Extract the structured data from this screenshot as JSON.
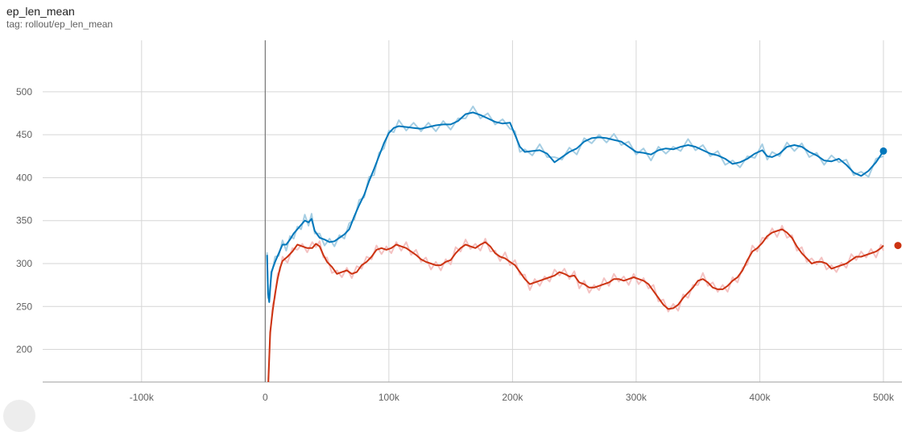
{
  "header": {
    "title": "ep_len_mean",
    "tag": "tag: rollout/ep_len_mean"
  },
  "chart_data": {
    "type": "line",
    "title": "ep_len_mean",
    "xlabel": "",
    "ylabel": "",
    "xlim": [
      -180000,
      515000
    ],
    "ylim": [
      162,
      560
    ],
    "x_ticks": [
      -100000,
      0,
      100000,
      200000,
      300000,
      400000,
      500000
    ],
    "x_tick_labels": [
      "-100k",
      "0",
      "100k",
      "200k",
      "300k",
      "400k",
      "500k"
    ],
    "y_ticks": [
      200,
      250,
      300,
      350,
      400,
      450,
      500
    ],
    "y_tick_labels": [
      "200",
      "250",
      "300",
      "350",
      "400",
      "450",
      "500"
    ],
    "grid": true,
    "series": [
      {
        "color": "#0077bb",
        "raw_color": "#a6cee3",
        "points": [
          [
            1500,
            310
          ],
          [
            2300,
            265
          ],
          [
            3200,
            255
          ],
          [
            5000,
            290
          ],
          [
            8000,
            302
          ],
          [
            11000,
            312
          ],
          [
            14000,
            322
          ],
          [
            17000,
            322
          ],
          [
            20000,
            328
          ],
          [
            23000,
            335
          ],
          [
            26000,
            340
          ],
          [
            29000,
            345
          ],
          [
            32000,
            350
          ],
          [
            35000,
            348
          ],
          [
            37500,
            352
          ],
          [
            40000,
            338
          ],
          [
            44000,
            330
          ],
          [
            48000,
            328
          ],
          [
            52000,
            325
          ],
          [
            56000,
            326
          ],
          [
            60000,
            330
          ],
          [
            64000,
            334
          ],
          [
            68000,
            340
          ],
          [
            72000,
            355
          ],
          [
            76000,
            368
          ],
          [
            80000,
            380
          ],
          [
            84000,
            396
          ],
          [
            88000,
            410
          ],
          [
            92000,
            425
          ],
          [
            96000,
            440
          ],
          [
            100000,
            452
          ],
          [
            104000,
            458
          ],
          [
            108000,
            460
          ],
          [
            114000,
            459
          ],
          [
            120000,
            458
          ],
          [
            126000,
            457
          ],
          [
            132000,
            459
          ],
          [
            138000,
            461
          ],
          [
            144000,
            462
          ],
          [
            150000,
            462
          ],
          [
            156000,
            466
          ],
          [
            162000,
            474
          ],
          [
            168000,
            476
          ],
          [
            174000,
            473
          ],
          [
            180000,
            469
          ],
          [
            186000,
            465
          ],
          [
            192000,
            463
          ],
          [
            198000,
            464
          ],
          [
            202000,
            450
          ],
          [
            206000,
            436
          ],
          [
            210000,
            430
          ],
          [
            216000,
            431
          ],
          [
            222000,
            432
          ],
          [
            228000,
            428
          ],
          [
            234000,
            418
          ],
          [
            240000,
            424
          ],
          [
            246000,
            430
          ],
          [
            252000,
            434
          ],
          [
            258000,
            442
          ],
          [
            264000,
            446
          ],
          [
            270000,
            447
          ],
          [
            276000,
            446
          ],
          [
            282000,
            444
          ],
          [
            288000,
            442
          ],
          [
            294000,
            436
          ],
          [
            300000,
            430
          ],
          [
            306000,
            429
          ],
          [
            312000,
            427
          ],
          [
            318000,
            432
          ],
          [
            324000,
            434
          ],
          [
            330000,
            433
          ],
          [
            336000,
            436
          ],
          [
            342000,
            438
          ],
          [
            348000,
            436
          ],
          [
            354000,
            432
          ],
          [
            360000,
            428
          ],
          [
            366000,
            426
          ],
          [
            372000,
            422
          ],
          [
            378000,
            416
          ],
          [
            384000,
            418
          ],
          [
            390000,
            422
          ],
          [
            396000,
            428
          ],
          [
            402000,
            432
          ],
          [
            406000,
            425
          ],
          [
            410000,
            424
          ],
          [
            416000,
            428
          ],
          [
            422000,
            436
          ],
          [
            428000,
            438
          ],
          [
            434000,
            436
          ],
          [
            440000,
            430
          ],
          [
            446000,
            426
          ],
          [
            452000,
            420
          ],
          [
            458000,
            419
          ],
          [
            464000,
            422
          ],
          [
            470000,
            415
          ],
          [
            476000,
            406
          ],
          [
            482000,
            402
          ],
          [
            488000,
            408
          ],
          [
            494000,
            418
          ],
          [
            500000,
            431
          ]
        ],
        "end_marker": [
          500000,
          431
        ]
      },
      {
        "color": "#cc3311",
        "raw_color": "#f4c2c2",
        "points": [
          [
            2500,
            162
          ],
          [
            4000,
            220
          ],
          [
            6000,
            245
          ],
          [
            8000,
            265
          ],
          [
            10000,
            282
          ],
          [
            12000,
            295
          ],
          [
            14000,
            303
          ],
          [
            18000,
            308
          ],
          [
            22000,
            314
          ],
          [
            26000,
            322
          ],
          [
            30000,
            320
          ],
          [
            34000,
            318
          ],
          [
            38000,
            318
          ],
          [
            41000,
            323
          ],
          [
            44000,
            320
          ],
          [
            47000,
            310
          ],
          [
            50000,
            302
          ],
          [
            54000,
            296
          ],
          [
            58000,
            288
          ],
          [
            62000,
            290
          ],
          [
            66000,
            292
          ],
          [
            70000,
            288
          ],
          [
            74000,
            290
          ],
          [
            78000,
            298
          ],
          [
            82000,
            302
          ],
          [
            86000,
            308
          ],
          [
            90000,
            316
          ],
          [
            94000,
            318
          ],
          [
            98000,
            316
          ],
          [
            102000,
            318
          ],
          [
            106000,
            322
          ],
          [
            110000,
            320
          ],
          [
            114000,
            318
          ],
          [
            118000,
            314
          ],
          [
            122000,
            310
          ],
          [
            126000,
            305
          ],
          [
            130000,
            302
          ],
          [
            134000,
            300
          ],
          [
            138000,
            298
          ],
          [
            142000,
            298
          ],
          [
            146000,
            302
          ],
          [
            150000,
            304
          ],
          [
            154000,
            312
          ],
          [
            158000,
            318
          ],
          [
            162000,
            322
          ],
          [
            166000,
            320
          ],
          [
            170000,
            318
          ],
          [
            174000,
            322
          ],
          [
            178000,
            325
          ],
          [
            182000,
            320
          ],
          [
            186000,
            312
          ],
          [
            190000,
            308
          ],
          [
            194000,
            306
          ],
          [
            198000,
            302
          ],
          [
            202000,
            298
          ],
          [
            206000,
            290
          ],
          [
            210000,
            282
          ],
          [
            214000,
            276
          ],
          [
            218000,
            278
          ],
          [
            222000,
            280
          ],
          [
            226000,
            282
          ],
          [
            230000,
            284
          ],
          [
            234000,
            286
          ],
          [
            238000,
            290
          ],
          [
            242000,
            288
          ],
          [
            246000,
            285
          ],
          [
            250000,
            286
          ],
          [
            254000,
            278
          ],
          [
            258000,
            276
          ],
          [
            262000,
            272
          ],
          [
            266000,
            272
          ],
          [
            270000,
            274
          ],
          [
            274000,
            276
          ],
          [
            278000,
            278
          ],
          [
            282000,
            282
          ],
          [
            286000,
            282
          ],
          [
            290000,
            280
          ],
          [
            294000,
            282
          ],
          [
            298000,
            284
          ],
          [
            302000,
            282
          ],
          [
            306000,
            280
          ],
          [
            310000,
            276
          ],
          [
            314000,
            268
          ],
          [
            318000,
            260
          ],
          [
            322000,
            252
          ],
          [
            326000,
            247
          ],
          [
            330000,
            248
          ],
          [
            334000,
            252
          ],
          [
            338000,
            260
          ],
          [
            342000,
            266
          ],
          [
            346000,
            272
          ],
          [
            350000,
            280
          ],
          [
            354000,
            282
          ],
          [
            358000,
            278
          ],
          [
            362000,
            272
          ],
          [
            366000,
            270
          ],
          [
            370000,
            270
          ],
          [
            374000,
            274
          ],
          [
            378000,
            280
          ],
          [
            382000,
            284
          ],
          [
            386000,
            292
          ],
          [
            390000,
            304
          ],
          [
            394000,
            314
          ],
          [
            398000,
            318
          ],
          [
            402000,
            324
          ],
          [
            406000,
            332
          ],
          [
            410000,
            336
          ],
          [
            414000,
            338
          ],
          [
            418000,
            340
          ],
          [
            422000,
            336
          ],
          [
            426000,
            330
          ],
          [
            430000,
            320
          ],
          [
            434000,
            312
          ],
          [
            438000,
            306
          ],
          [
            442000,
            300
          ],
          [
            446000,
            302
          ],
          [
            450000,
            302
          ],
          [
            454000,
            300
          ],
          [
            458000,
            294
          ],
          [
            462000,
            296
          ],
          [
            466000,
            298
          ],
          [
            470000,
            300
          ],
          [
            474000,
            304
          ],
          [
            478000,
            308
          ],
          [
            482000,
            308
          ],
          [
            486000,
            310
          ],
          [
            490000,
            312
          ],
          [
            494000,
            314
          ],
          [
            498000,
            318
          ],
          [
            500000,
            321
          ]
        ],
        "end_marker": [
          500000,
          321
        ]
      }
    ]
  }
}
